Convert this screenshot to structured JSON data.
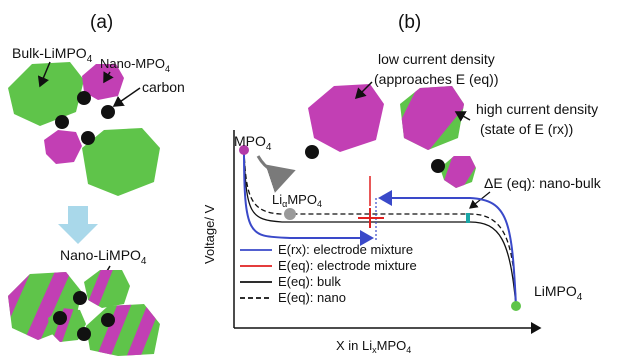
{
  "panel_a": {
    "label": "(a)",
    "bulk_label": "Bulk-LiMPO",
    "bulk_sub": "4",
    "nano_mpo_label": "Nano-MPO",
    "nano_mpo_sub": "4",
    "carbon_label": "carbon",
    "nano_limpo_label": "Nano-LiMPO",
    "nano_limpo_sub": "4"
  },
  "panel_b": {
    "label": "(b)",
    "low_current_line1": "low current density",
    "low_current_line2": "(approaches E (eq))",
    "high_current_line1": "high current density",
    "high_current_line2": "(state of E (rx))",
    "delta_e_label": "ΔE (eq): nano-bulk",
    "mpo_label": "MPO",
    "mpo_sub": "4",
    "limpo_label": "LiMPO",
    "limpo_sub": "4",
    "lixmpo_label_pre": "Li",
    "lixmpo_label_sub": "α",
    "lixmpo_label_post": "MPO",
    "lixmpo_label_sub2": "4",
    "y_axis_label": "Voltage/ V",
    "x_axis_label_pre": "X in Li",
    "x_axis_label_sub": "x",
    "x_axis_label_post": "MPO",
    "x_axis_label_sub2": "4",
    "legend": [
      {
        "label": "E(rx): electrode mixture",
        "color": "#3a49c9",
        "style": "solid"
      },
      {
        "label": "E(eq): electrode mixture",
        "color": "#e02020",
        "style": "solid"
      },
      {
        "label": "E(eq): bulk",
        "color": "#111111",
        "style": "solid"
      },
      {
        "label": "E(eq): nano",
        "color": "#111111",
        "style": "dashed"
      }
    ]
  },
  "colors": {
    "lithiated_green": "#5fc44a",
    "delithiated_magenta": "#c23fb4",
    "carbon_black": "#111111",
    "arrow_lightblue": "#a9d8ea",
    "mpo_point": "#b23aa8",
    "lixmpo_point": "#9a9a9a",
    "delta_bar": "#1aa6a6"
  }
}
